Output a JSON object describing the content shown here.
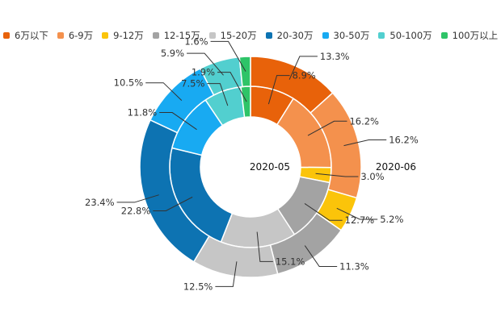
{
  "chart_data": {
    "type": "pie",
    "categories": [
      "6万以下",
      "6-9万",
      "9-12万",
      "12-15万",
      "15-20万",
      "20-30万",
      "30-50万",
      "50-100万",
      "100万以上"
    ],
    "colors": [
      "#e8620a",
      "#f4914d",
      "#fbc40a",
      "#a3a3a3",
      "#c6c6c6",
      "#0d73b2",
      "#18aaf2",
      "#52cfcf",
      "#2ec468"
    ],
    "series": [
      {
        "name": "2020-05",
        "ring": "inner",
        "values": [
          8.9,
          16.2,
          3.0,
          12.7,
          15.1,
          22.8,
          11.8,
          7.5,
          1.9
        ],
        "labels": [
          "8.9%",
          "16.2%",
          "3.0%",
          "12.7%",
          "15.1%",
          "22.8%",
          "11.8%",
          "7.5%",
          "1.9%"
        ]
      },
      {
        "name": "2020-06",
        "ring": "outer",
        "values": [
          13.3,
          16.2,
          5.2,
          11.3,
          12.5,
          23.4,
          10.5,
          5.9,
          1.6
        ],
        "labels": [
          "13.3%",
          "16.2%",
          "5.2%",
          "11.3%",
          "12.5%",
          "23.4%",
          "10.5%",
          "5.9%",
          "1.6%"
        ]
      }
    ],
    "legend_position": "top-left"
  }
}
